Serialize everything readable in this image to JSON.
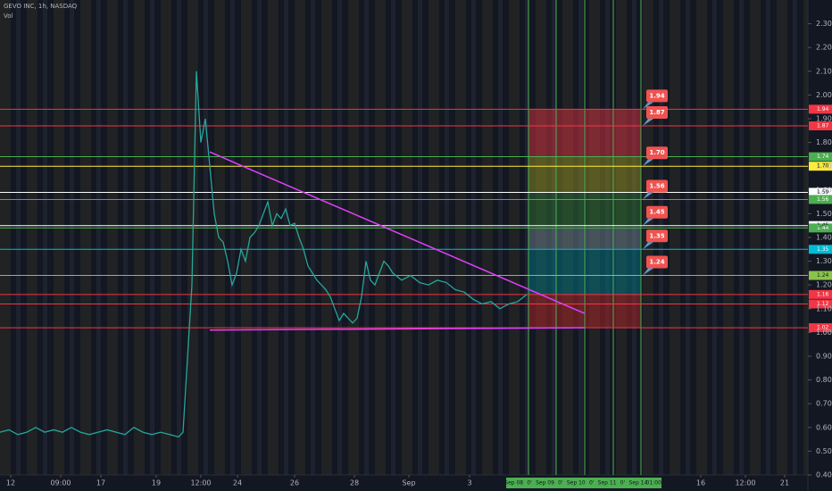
{
  "chart_data": {
    "type": "line",
    "title": "GEVO INC, 1h, NASDAQ",
    "subtitle": "Vol",
    "x": [
      0,
      2,
      4,
      6,
      8,
      10,
      12,
      14,
      16,
      18,
      20,
      22,
      24,
      26,
      28,
      30,
      32,
      34,
      36,
      38,
      40,
      41,
      43,
      44,
      45,
      46,
      47,
      48,
      49,
      50,
      51,
      52,
      53,
      54,
      55,
      56,
      57,
      58,
      59,
      60,
      61,
      62,
      63,
      64,
      65,
      66,
      67,
      68,
      69,
      70,
      71,
      72,
      73,
      74,
      75,
      76,
      77,
      78,
      79,
      80,
      81,
      82,
      83,
      84,
      85,
      86,
      87,
      88,
      90,
      92,
      94,
      96,
      98,
      100,
      102,
      104,
      106,
      108,
      110,
      112,
      114,
      116,
      118
    ],
    "series": [
      {
        "color": "#26a69a",
        "values": [
          0.58,
          0.59,
          0.57,
          0.58,
          0.6,
          0.58,
          0.59,
          0.58,
          0.6,
          0.58,
          0.57,
          0.58,
          0.59,
          0.58,
          0.57,
          0.6,
          0.58,
          0.57,
          0.58,
          0.57,
          0.56,
          0.58,
          1.2,
          2.1,
          1.8,
          1.9,
          1.7,
          1.5,
          1.4,
          1.38,
          1.3,
          1.2,
          1.25,
          1.35,
          1.3,
          1.4,
          1.42,
          1.45,
          1.5,
          1.55,
          1.45,
          1.5,
          1.48,
          1.52,
          1.45,
          1.46,
          1.4,
          1.35,
          1.28,
          1.25,
          1.22,
          1.2,
          1.18,
          1.15,
          1.1,
          1.05,
          1.08,
          1.06,
          1.04,
          1.06,
          1.15,
          1.3,
          1.22,
          1.2,
          1.25,
          1.3,
          1.28,
          1.25,
          1.22,
          1.24,
          1.21,
          1.2,
          1.22,
          1.21,
          1.18,
          1.17,
          1.14,
          1.12,
          1.13,
          1.1,
          1.12,
          1.13,
          1.16
        ]
      }
    ],
    "xlim": [
      0,
      181
    ],
    "ylim": [
      0.4,
      2.4
    ],
    "xticks": [
      {
        "value": 2.4,
        "label": "12"
      },
      {
        "value": 13.6,
        "label": "09:00"
      },
      {
        "value": 22.6,
        "label": "17"
      },
      {
        "value": 35,
        "label": "19"
      },
      {
        "value": 45,
        "label": "12:00"
      },
      {
        "value": 53.2,
        "label": "24"
      },
      {
        "value": 66,
        "label": "26"
      },
      {
        "value": 79.4,
        "label": "28"
      },
      {
        "value": 91.6,
        "label": "Sep"
      },
      {
        "value": 105.2,
        "label": "3"
      },
      {
        "value": 157,
        "label": "16"
      },
      {
        "value": 167,
        "label": "12:00"
      },
      {
        "value": 175.8,
        "label": "21"
      }
    ],
    "yticks": [
      {
        "value": 0.4,
        "label": "0.40"
      },
      {
        "value": 0.5,
        "label": "0.50"
      },
      {
        "value": 0.6,
        "label": "0.60"
      },
      {
        "value": 0.7,
        "label": "0.70"
      },
      {
        "value": 0.8,
        "label": "0.80"
      },
      {
        "value": 0.9,
        "label": "0.90"
      },
      {
        "value": 1.0,
        "label": "1.00"
      },
      {
        "value": 1.1,
        "label": "1.10"
      },
      {
        "value": 1.2,
        "label": "1.20"
      },
      {
        "value": 1.3,
        "label": "1.30"
      },
      {
        "value": 1.4,
        "label": "1.40"
      },
      {
        "value": 1.5,
        "label": "1.50"
      },
      {
        "value": 1.6,
        "label": "1.60"
      },
      {
        "value": 1.7,
        "label": "1.70"
      },
      {
        "value": 1.8,
        "label": "1.80"
      },
      {
        "value": 1.9,
        "label": "1.90"
      },
      {
        "value": 2.0,
        "label": "2.00"
      },
      {
        "value": 2.1,
        "label": "2.10"
      },
      {
        "value": 2.2,
        "label": "2.20"
      },
      {
        "value": 2.3,
        "label": "2.30"
      }
    ],
    "levels": [
      {
        "value": 1.94,
        "label": "1.94",
        "color": "#f23645"
      },
      {
        "value": 1.87,
        "label": "1.87",
        "color": "#f23645"
      },
      {
        "value": 1.74,
        "label": "1.74",
        "color": "#4caf50"
      },
      {
        "value": 1.7,
        "label": "1.70",
        "color": "#ffeb3b"
      },
      {
        "value": 1.59,
        "label": "1.59",
        "color": "#ffffff"
      },
      {
        "value": 1.56,
        "label": "1.56",
        "color": "#4caf50"
      },
      {
        "value": 1.45,
        "label": "1.45",
        "color": "#ffffff"
      },
      {
        "value": 1.44,
        "label": "1.44",
        "color": "#4caf50"
      },
      {
        "value": 1.35,
        "label": "1.35",
        "color": "#00bcd4"
      },
      {
        "value": 1.24,
        "label": "1.24",
        "color": "#8bc34a"
      },
      {
        "value": 1.16,
        "label": "1.16",
        "color": "#f23645"
      },
      {
        "value": 1.12,
        "label": "1.12",
        "color": "#f23645"
      },
      {
        "value": 1.02,
        "label": "1.02",
        "color": "#f23645"
      }
    ],
    "callouts": [
      {
        "value": 1.94,
        "label": "1.94"
      },
      {
        "value": 1.87,
        "label": "1.87"
      },
      {
        "value": 1.7,
        "label": "1.70"
      },
      {
        "value": 1.56,
        "label": "1.56"
      },
      {
        "value": 1.45,
        "label": "1.45"
      },
      {
        "value": 1.35,
        "label": "1.35"
      },
      {
        "value": 1.24,
        "label": "1.24"
      }
    ],
    "zones": [
      {
        "from": 1.94,
        "to": 1.74,
        "color": "#f23645"
      },
      {
        "from": 1.74,
        "to": 1.59,
        "color": "#9e9d24"
      },
      {
        "from": 1.59,
        "to": 1.44,
        "color": "#2e7d32"
      },
      {
        "from": 1.44,
        "to": 1.35,
        "color": "#78909c"
      },
      {
        "from": 1.35,
        "to": 1.16,
        "color": "#00838f"
      },
      {
        "from": 1.16,
        "to": 1.02,
        "color": "#c62828"
      }
    ],
    "zone_x": [
      118.4,
      143.6
    ],
    "vertical_lines": [
      118.4,
      124.6,
      131,
      137.4,
      143.6
    ],
    "time_markers": [
      "Sep 08",
      "0'",
      "Sep 09",
      "0'",
      "Sep 10",
      "0'",
      "Sep 11",
      "0'",
      "Sep 14",
      "01:00"
    ],
    "trendlines": [
      {
        "x": [
          47,
          131
        ],
        "y": [
          1.76,
          1.08
        ]
      },
      {
        "x": [
          47,
          131
        ],
        "y": [
          1.01,
          1.02
        ]
      }
    ]
  }
}
